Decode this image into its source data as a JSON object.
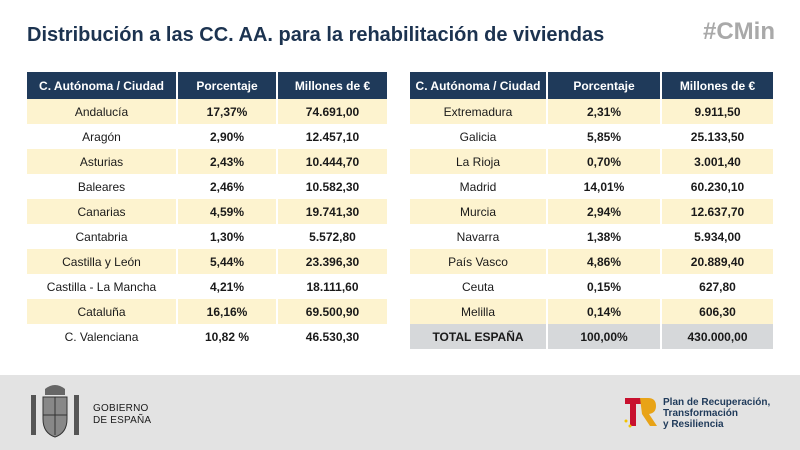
{
  "header": {
    "title": "Distribución a las CC. AA. para la rehabilitación de viviendas",
    "tag": "#CMin"
  },
  "tables": [
    {
      "columns": [
        "C. Autónoma / Ciudad",
        "Porcentaje",
        "Millones de €"
      ],
      "rows": [
        [
          "Andalucía",
          "17,37%",
          "74.691,00"
        ],
        [
          "Aragón",
          "2,90%",
          "12.457,10"
        ],
        [
          "Asturias",
          "2,43%",
          "10.444,70"
        ],
        [
          "Baleares",
          "2,46%",
          "10.582,30"
        ],
        [
          "Canarias",
          "4,59%",
          "19.741,30"
        ],
        [
          "Cantabria",
          "1,30%",
          "5.572,80"
        ],
        [
          "Castilla y León",
          "5,44%",
          "23.396,30"
        ],
        [
          "Castilla - La Mancha",
          "4,21%",
          "18.111,60"
        ],
        [
          "Cataluña",
          "16,16%",
          "69.500,90"
        ],
        [
          "C. Valenciana",
          "10,82 %",
          "46.530,30"
        ]
      ]
    },
    {
      "columns": [
        "C. Autónoma / Ciudad",
        "Porcentaje",
        "Millones de €"
      ],
      "rows": [
        [
          "Extremadura",
          "2,31%",
          "9.911,50"
        ],
        [
          "Galicia",
          "5,85%",
          "25.133,50"
        ],
        [
          "La Rioja",
          "0,70%",
          "3.001,40"
        ],
        [
          "Madrid",
          "14,01%",
          "60.230,10"
        ],
        [
          "Murcia",
          "2,94%",
          "12.637,70"
        ],
        [
          "Navarra",
          "1,38%",
          "5.934,00"
        ],
        [
          "País Vasco",
          "4,86%",
          "20.889,40"
        ],
        [
          "Ceuta",
          "0,15%",
          "627,80"
        ],
        [
          "Melilla",
          "0,14%",
          "606,30"
        ]
      ],
      "total": [
        "TOTAL ESPAÑA",
        "100,00%",
        "430.000,00"
      ]
    }
  ],
  "footer": {
    "government": [
      "GOBIERNO",
      "DE ESPAÑA"
    ],
    "plan": [
      "Plan de Recuperación,",
      "Transformación",
      "y Resiliencia"
    ]
  }
}
